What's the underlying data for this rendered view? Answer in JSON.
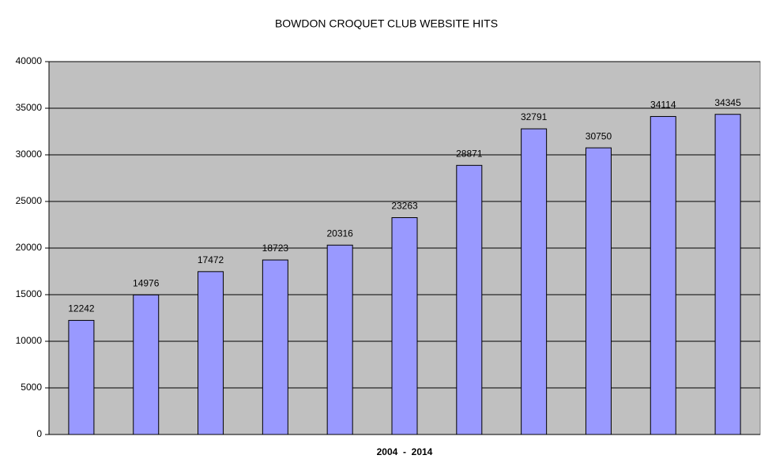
{
  "chart_data": {
    "type": "bar",
    "title": "BOWDON CROQUET CLUB WEBSITE HITS",
    "x_label": "2004  -  2014",
    "categories": [
      null,
      null,
      null,
      null,
      null,
      null,
      null,
      null,
      null,
      null,
      null
    ],
    "values": [
      12242,
      14976,
      17472,
      18723,
      20316,
      23263,
      28871,
      32791,
      30750,
      34114,
      34345
    ],
    "color": "#9999ff",
    "ylim": [
      0,
      40000
    ],
    "yticks": [
      0,
      5000,
      10000,
      15000,
      20000,
      25000,
      30000,
      35000,
      40000
    ],
    "grid": true
  }
}
